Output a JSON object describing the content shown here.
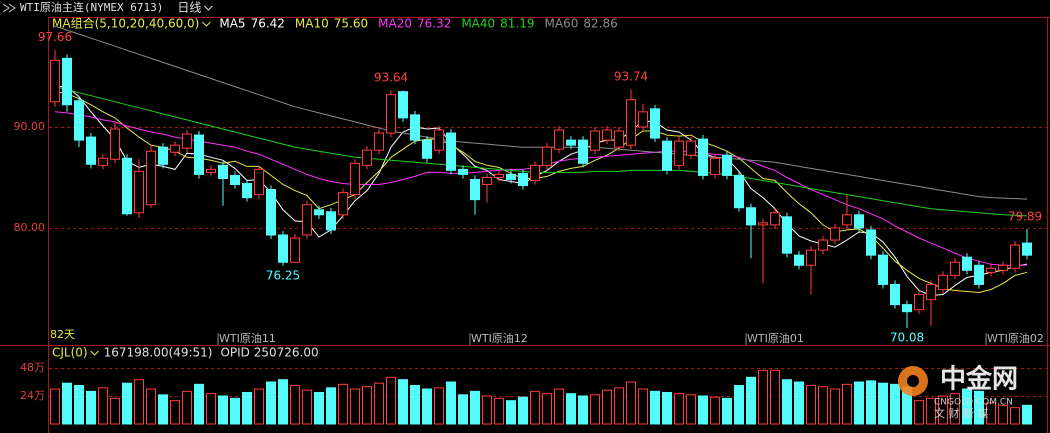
{
  "chart_data": {
    "type": "candlestick",
    "title": "WTI原油主连(NYMEX 6713)",
    "period": "日线",
    "ma_label": "MA组合(5,10,20,40,60,0)",
    "day_count_label": "82天",
    "up_color": "#ff3c3c",
    "down_color": "#54fcfc",
    "grid_color": "#a01818",
    "ylim": [
      68.4,
      100.6
    ],
    "yticks": [
      {
        "value": 90,
        "label": "90.00"
      },
      {
        "value": 80,
        "label": "80.00"
      }
    ],
    "categories": [
      null,
      null,
      null,
      null,
      null,
      null,
      null,
      null,
      null,
      null,
      null,
      null,
      null,
      null,
      "WTI原油11",
      null,
      null,
      null,
      null,
      null,
      null,
      null,
      null,
      null,
      null,
      null,
      null,
      null,
      null,
      null,
      null,
      null,
      null,
      null,
      null,
      "WTI原油12",
      null,
      null,
      null,
      null,
      null,
      null,
      null,
      null,
      null,
      null,
      null,
      null,
      null,
      null,
      null,
      null,
      null,
      null,
      null,
      null,
      null,
      null,
      "WTI原油01",
      null,
      null,
      null,
      null,
      null,
      null,
      null,
      null,
      null,
      null,
      null,
      null,
      null,
      null,
      null,
      null,
      null,
      null,
      null,
      "WTI原油02",
      null,
      null,
      null
    ],
    "open": [
      92.5,
      96.8,
      92.6,
      89.0,
      86.2,
      86.8,
      86.9,
      81.5,
      82.3,
      88.0,
      87.5,
      87.9,
      89.2,
      85.5,
      86.2,
      85.2,
      84.4,
      83.3,
      83.8,
      79.3,
      76.6,
      79.3,
      81.8,
      81.6,
      81.3,
      83.3,
      86.2,
      87.7,
      89.4,
      93.5,
      91.2,
      88.7,
      87.7,
      89.4,
      85.8,
      84.8,
      84.3,
      85.0,
      85.3,
      85.4,
      84.7,
      86.2,
      87.8,
      88.7,
      88.7,
      87.7,
      88.7,
      88.0,
      88.2,
      90.0,
      91.8,
      88.6,
      86.2,
      87.2,
      88.8,
      85.3,
      87.2,
      85.2,
      82.0,
      80.3,
      80.3,
      81.1,
      77.3,
      76.3,
      77.8,
      78.8,
      80.3,
      81.3,
      79.8,
      77.3,
      74.4,
      72.4,
      71.9,
      72.9,
      73.9,
      75.3,
      77.1,
      76.3,
      75.6,
      75.8,
      76.0,
      78.5
    ],
    "high": [
      97.66,
      97.2,
      93.0,
      89.4,
      87.3,
      90.5,
      87.3,
      86.8,
      88.2,
      88.4,
      88.6,
      89.7,
      89.6,
      86.2,
      86.6,
      85.6,
      84.8,
      86.2,
      84.2,
      79.7,
      79.4,
      82.7,
      82.2,
      82.0,
      83.9,
      86.8,
      88.1,
      89.8,
      93.64,
      93.6,
      91.6,
      89.1,
      90.1,
      89.8,
      86.2,
      85.2,
      85.4,
      85.7,
      85.7,
      85.8,
      86.6,
      88.4,
      90.1,
      89.1,
      89.1,
      90.0,
      90.1,
      90.0,
      93.74,
      92.3,
      92.2,
      89.0,
      89.0,
      89.0,
      89.2,
      87.3,
      87.6,
      85.6,
      82.4,
      80.9,
      81.9,
      81.5,
      77.7,
      78.2,
      79.2,
      80.4,
      83.3,
      81.7,
      80.2,
      77.7,
      74.8,
      72.8,
      73.8,
      74.8,
      75.7,
      77.0,
      77.5,
      76.7,
      76.4,
      76.7,
      78.7,
      79.89
    ],
    "low": [
      92.0,
      91.5,
      88.0,
      85.9,
      85.8,
      86.4,
      81.2,
      81.0,
      82.0,
      85.9,
      87.1,
      87.5,
      84.9,
      85.1,
      82.2,
      83.9,
      82.6,
      82.9,
      78.9,
      76.25,
      76.5,
      78.9,
      80.9,
      79.4,
      80.9,
      82.9,
      85.8,
      87.3,
      89.0,
      90.5,
      88.3,
      86.5,
      87.3,
      85.3,
      84.9,
      81.3,
      82.5,
      84.6,
      84.4,
      83.8,
      84.3,
      85.8,
      87.4,
      87.8,
      86.0,
      87.3,
      88.3,
      87.6,
      87.8,
      89.6,
      88.5,
      85.3,
      85.8,
      86.8,
      84.8,
      84.9,
      84.8,
      81.6,
      77.0,
      74.5,
      79.9,
      77.1,
      75.9,
      73.4,
      77.4,
      78.4,
      79.9,
      79.6,
      76.9,
      74.0,
      72.0,
      70.08,
      71.5,
      70.3,
      73.5,
      74.9,
      75.4,
      74.0,
      75.2,
      75.4,
      75.6,
      76.9
    ],
    "close": [
      96.6,
      92.2,
      88.7,
      86.3,
      86.9,
      89.8,
      81.4,
      85.6,
      87.6,
      86.3,
      88.2,
      89.3,
      85.3,
      85.8,
      84.9,
      84.3,
      83.0,
      85.8,
      79.3,
      76.6,
      79.0,
      82.3,
      81.3,
      79.8,
      83.5,
      86.4,
      87.7,
      89.4,
      93.2,
      90.9,
      88.7,
      86.9,
      89.7,
      85.7,
      85.3,
      82.8,
      85.0,
      85.3,
      84.8,
      84.2,
      86.2,
      88.0,
      89.7,
      88.2,
      86.4,
      89.6,
      89.7,
      89.6,
      92.7,
      91.5,
      88.9,
      85.7,
      88.6,
      88.6,
      85.2,
      86.9,
      85.2,
      82.0,
      80.3,
      80.5,
      81.5,
      77.5,
      76.3,
      77.8,
      78.8,
      80.0,
      81.3,
      80.0,
      77.3,
      74.4,
      72.4,
      71.7,
      73.4,
      74.4,
      75.3,
      76.6,
      75.8,
      74.4,
      76.0,
      76.3,
      78.3,
      77.3
    ],
    "annotations": [
      {
        "index": 0,
        "value": 97.66
      },
      {
        "index": 28,
        "value": 93.64
      },
      {
        "index": 48,
        "value": 93.74
      },
      {
        "index": 19,
        "value": 76.25
      },
      {
        "index": 71,
        "value": 70.08
      },
      {
        "index": 81,
        "value": 79.89
      }
    ],
    "ma": [
      {
        "name": "MA5",
        "legend_value": "76.42",
        "color": "#ffffff",
        "values": [
          94,
          94,
          93,
          91.5,
          90.1,
          88.8,
          86.6,
          86.0,
          86.3,
          86.1,
          85.8,
          87.4,
          87.3,
          87.0,
          86.7,
          85.9,
          84.7,
          84.8,
          83.5,
          81.8,
          80.7,
          80.6,
          79.1,
          79.8,
          81.2,
          82.7,
          83.7,
          85.4,
          88.0,
          89.5,
          90.0,
          89.8,
          89.9,
          88.4,
          87.3,
          86.1,
          85.7,
          84.8,
          84.6,
          84.4,
          85.1,
          85.7,
          86.6,
          87.3,
          87.7,
          88.4,
          88.7,
          88.7,
          89.6,
          90.6,
          90.5,
          89.7,
          89.5,
          88.7,
          87.4,
          87.0,
          86.9,
          85.6,
          83.9,
          83.0,
          81.9,
          80.4,
          79.2,
          78.7,
          78.4,
          78.1,
          78.8,
          79.6,
          79.5,
          78.6,
          77.1,
          75.2,
          73.8,
          73.3,
          73.4,
          74.3,
          75.1,
          75.3,
          75.6,
          75.8,
          76.2,
          76.42
        ]
      },
      {
        "name": "MA10",
        "legend_value": "75.60",
        "color": "#e8e848",
        "values": [
          93.5,
          93.3,
          92.8,
          92.2,
          91.5,
          90.9,
          89.9,
          89.0,
          88.2,
          88.0,
          87.6,
          87.0,
          86.9,
          86.7,
          86.4,
          86.6,
          86.1,
          86.1,
          85.2,
          84.3,
          83.7,
          83.2,
          81.9,
          82.3,
          82.8,
          83.3,
          84.5,
          85.6,
          87.0,
          87.8,
          88.6,
          88.8,
          88.8,
          88.2,
          87.5,
          86.6,
          86.2,
          86.0,
          85.4,
          84.9,
          84.9,
          85.1,
          85.6,
          85.9,
          86.1,
          86.7,
          87.2,
          87.9,
          88.8,
          89.6,
          89.6,
          89.2,
          89.1,
          89.2,
          88.5,
          88.1,
          87.6,
          86.9,
          85.9,
          84.9,
          84.7,
          83.5,
          82.4,
          81.5,
          80.3,
          79.6,
          79.8,
          79.9,
          79.2,
          78.0,
          76.7,
          75.8,
          75.0,
          74.5,
          74.0,
          73.8,
          73.7,
          73.6,
          73.9,
          74.5,
          75.3,
          75.6
        ]
      },
      {
        "name": "MA20",
        "legend_value": "76.32",
        "color": "#ff30ff",
        "values": [
          91.5,
          91.4,
          91.2,
          91.0,
          90.7,
          90.5,
          90.1,
          89.8,
          89.5,
          89.3,
          89.0,
          88.8,
          88.6,
          88.4,
          88.2,
          88.0,
          87.6,
          87.3,
          86.8,
          86.3,
          85.8,
          85.3,
          84.9,
          84.6,
          84.4,
          84.3,
          84.3,
          84.3,
          84.5,
          84.8,
          85.1,
          85.5,
          85.5,
          85.4,
          85.4,
          85.5,
          85.6,
          85.7,
          85.8,
          85.8,
          86.0,
          86.3,
          86.6,
          86.8,
          86.9,
          87.0,
          87.1,
          87.2,
          87.3,
          87.4,
          87.5,
          87.6,
          87.6,
          87.6,
          87.4,
          87.3,
          87.2,
          87.0,
          86.6,
          86.1,
          85.7,
          85.0,
          84.4,
          83.8,
          83.3,
          82.8,
          82.3,
          81.9,
          81.4,
          80.9,
          80.2,
          79.6,
          79.0,
          78.5,
          78.0,
          77.5,
          77.0,
          76.7,
          76.4,
          76.3,
          76.3,
          76.32
        ]
      },
      {
        "name": "MA40",
        "legend_value": "81.19",
        "color": "#20d020",
        "values": [
          94.0,
          93.7,
          93.4,
          93.1,
          92.8,
          92.5,
          92.2,
          91.9,
          91.6,
          91.3,
          91.0,
          90.7,
          90.4,
          90.1,
          89.8,
          89.5,
          89.2,
          88.9,
          88.6,
          88.3,
          88.0,
          87.8,
          87.6,
          87.4,
          87.2,
          87.0,
          86.9,
          86.8,
          86.7,
          86.6,
          86.5,
          86.4,
          86.3,
          86.2,
          86.1,
          86.0,
          85.9,
          85.8,
          85.7,
          85.6,
          85.5,
          85.5,
          85.5,
          85.5,
          85.5,
          85.6,
          85.6,
          85.6,
          85.7,
          85.7,
          85.7,
          85.7,
          85.7,
          85.6,
          85.5,
          85.4,
          85.3,
          85.1,
          84.9,
          84.7,
          84.5,
          84.3,
          84.1,
          83.9,
          83.7,
          83.5,
          83.3,
          83.1,
          82.9,
          82.7,
          82.5,
          82.3,
          82.1,
          81.9,
          81.8,
          81.7,
          81.6,
          81.5,
          81.4,
          81.3,
          81.25,
          81.19
        ]
      },
      {
        "name": "MA60",
        "legend_value": "82.86",
        "color": "#8c8c8c",
        "values": [
          100.0,
          99.6,
          99.2,
          98.8,
          98.4,
          98.0,
          97.6,
          97.2,
          96.8,
          96.4,
          96.0,
          95.6,
          95.2,
          94.8,
          94.4,
          94.0,
          93.6,
          93.2,
          92.8,
          92.4,
          92.0,
          91.7,
          91.4,
          91.1,
          90.8,
          90.5,
          90.2,
          89.9,
          89.6,
          89.4,
          89.2,
          89.0,
          88.8,
          88.6,
          88.5,
          88.4,
          88.3,
          88.2,
          88.1,
          88.0,
          88.0,
          88.0,
          88.0,
          88.0,
          88.0,
          88.0,
          87.9,
          87.8,
          87.7,
          87.6,
          87.5,
          87.4,
          87.3,
          87.2,
          87.1,
          87.0,
          86.9,
          86.8,
          86.7,
          86.6,
          86.5,
          86.3,
          86.1,
          85.9,
          85.7,
          85.5,
          85.3,
          85.1,
          84.9,
          84.7,
          84.5,
          84.3,
          84.1,
          83.9,
          83.7,
          83.5,
          83.3,
          83.1,
          83.0,
          82.95,
          82.9,
          82.86
        ]
      }
    ],
    "volume": {
      "label": "CJL(0)",
      "summary": "167198.00(49:51)",
      "opid": "OPID 250726.00",
      "ylim": [
        0,
        60
      ],
      "yticks": [
        {
          "value": 24,
          "label": "24万"
        },
        {
          "value": 48,
          "label": "48万"
        }
      ],
      "values": [
        30,
        35,
        33,
        28,
        31,
        22,
        35,
        38,
        30,
        25,
        20,
        28,
        34,
        26,
        24,
        22,
        27,
        30,
        36,
        38,
        33,
        29,
        27,
        31,
        34,
        30,
        32,
        35,
        40,
        38,
        33,
        30,
        31,
        36,
        25,
        28,
        24,
        22,
        20,
        23,
        28,
        26,
        30,
        26,
        24,
        25,
        29,
        31,
        36,
        30,
        28,
        27,
        26,
        25,
        24,
        23,
        22,
        33,
        40,
        46,
        46,
        38,
        36,
        33,
        32,
        30,
        34,
        36,
        37,
        35,
        34,
        32,
        20,
        22,
        24,
        26,
        30,
        28,
        18,
        16,
        14,
        16
      ]
    }
  },
  "watermark": {
    "brand": "中金网",
    "site": "CNGOLD.COM.CN",
    "slogan": "文 财 新 媒"
  }
}
